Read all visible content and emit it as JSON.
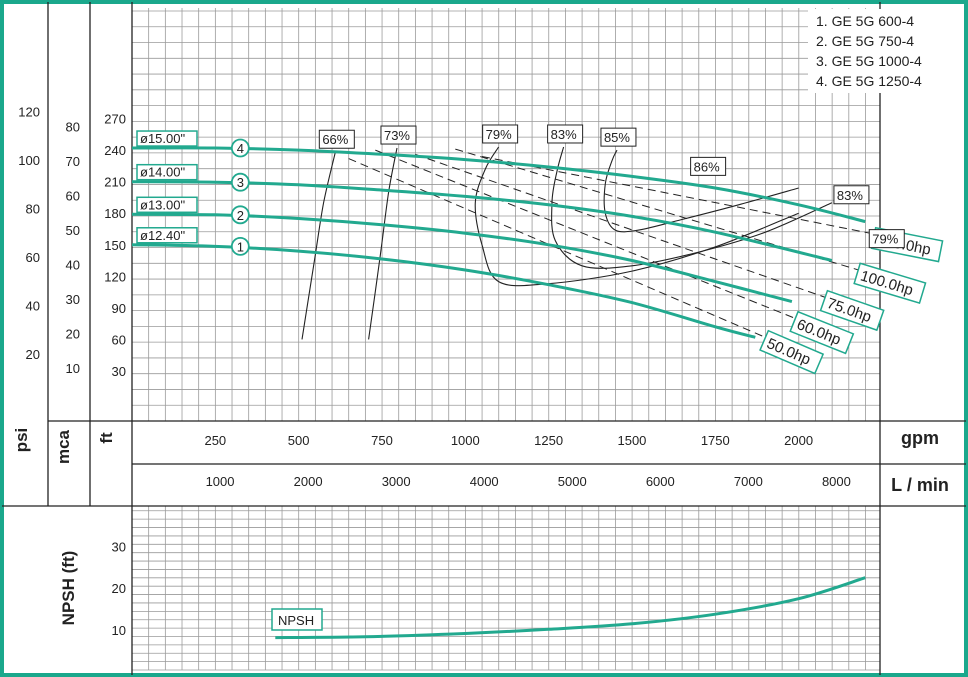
{
  "colors": {
    "frame": "#1aa88c",
    "curve": "#22a98f",
    "ink": "#222222",
    "grid": "#9a9a9a"
  },
  "legend": [
    "1. GE 5G 600-4",
    "2. GE 5G 750-4",
    "3. GE 5G 1000-4",
    "4. GE 5G 1250-4"
  ],
  "chart_data": [
    {
      "type": "line",
      "title": "",
      "x_unit": "gpm",
      "x_unit_alt": "L / min",
      "xlim": [
        0,
        2250
      ],
      "ylim": [
        0,
        290
      ],
      "y_unit": "ft",
      "y_unit_alt": [
        "mca",
        "psi"
      ],
      "ticks": {
        "gpm": [
          250,
          500,
          750,
          1000,
          1250,
          1500,
          1750,
          2000
        ],
        "lmin": [
          1000,
          2000,
          3000,
          4000,
          5000,
          6000,
          7000,
          8000
        ],
        "ft": [
          30,
          60,
          90,
          120,
          150,
          180,
          210,
          240,
          270
        ],
        "mca": [
          10,
          20,
          30,
          40,
          50,
          60,
          70,
          80
        ],
        "psi": [
          20,
          40,
          60,
          80,
          100,
          120
        ]
      },
      "impeller_curves": [
        {
          "id": "1",
          "diameter": "ø12.40\"",
          "x": [
            0,
            250,
            500,
            750,
            1000,
            1250,
            1500,
            1750,
            1870
          ],
          "y": [
            150,
            148.5,
            144,
            136.5,
            126,
            112,
            95,
            72,
            62
          ]
        },
        {
          "id": "2",
          "diameter": "ø13.00\"",
          "x": [
            0,
            250,
            500,
            750,
            1000,
            1250,
            1500,
            1750,
            1980
          ],
          "y": [
            179,
            178.5,
            175,
            169,
            161,
            150,
            135,
            115,
            96
          ]
        },
        {
          "id": "3",
          "diameter": "ø14.00\"",
          "x": [
            0,
            250,
            500,
            750,
            1000,
            1250,
            1500,
            1750,
            2100
          ],
          "y": [
            210,
            209.5,
            207,
            202,
            196,
            188,
            177,
            162,
            135
          ]
        },
        {
          "id": "4",
          "diameter": "ø15.00\"",
          "x": [
            0,
            250,
            500,
            750,
            1000,
            1250,
            1500,
            1750,
            2000,
            2200
          ],
          "y": [
            242,
            242,
            240,
            236,
            231,
            224,
            215,
            204,
            188,
            172
          ]
        }
      ],
      "efficiency_curves": [
        {
          "label": "66%",
          "x": [
            510,
            545,
            575,
            610
          ],
          "y": [
            60,
            130,
            190,
            238
          ]
        },
        {
          "label": "73%",
          "x": [
            710,
            745,
            770,
            795
          ],
          "y": [
            60,
            140,
            200,
            242
          ]
        },
        {
          "label": "79%",
          "x": [
            2000,
            1750,
            1500,
            1250,
            1100,
            1050,
            1030,
            1060,
            1100
          ],
          "y": [
            180,
            148,
            125,
            113,
            115,
            150,
            190,
            222,
            243
          ]
        },
        {
          "label": "83%",
          "x": [
            2100,
            1900,
            1700,
            1500,
            1350,
            1270,
            1260,
            1275,
            1295
          ],
          "y": [
            190,
            162,
            143,
            130,
            130,
            154,
            190,
            220,
            243
          ]
        },
        {
          "label": "85%",
          "x": [
            2000,
            1820,
            1650,
            1520,
            1450,
            1420,
            1420,
            1440,
            1455
          ],
          "y": [
            204,
            188,
            174,
            164,
            164,
            180,
            208,
            230,
            240
          ]
        },
        {
          "label": "86%",
          "x": [
            1700
          ],
          "y": [
            216
          ]
        },
        {
          "label": "83%",
          "x": [
            2130
          ],
          "y": [
            189
          ]
        },
        {
          "label": "79%",
          "x": [
            2200
          ],
          "y": [
            172
          ]
        }
      ],
      "power_lines": [
        {
          "label": "50.0hp",
          "x": [
            650,
            1900
          ],
          "y": [
            232,
            62
          ]
        },
        {
          "label": "60.0hp",
          "x": [
            730,
            1990
          ],
          "y": [
            240,
            80
          ]
        },
        {
          "label": "75.0hp",
          "x": [
            850,
            2080
          ],
          "y": [
            236,
            100
          ]
        },
        {
          "label": "100.0hp",
          "x": [
            970,
            2180
          ],
          "y": [
            241,
            126
          ]
        },
        {
          "label": "125.0hp",
          "x": [
            1050,
            2230
          ],
          "y": [
            234,
            160
          ]
        }
      ],
      "npsh": {
        "label": "NPSH",
        "y_title": "NPSH (ft)",
        "ylim": [
          0,
          35
        ],
        "ticks": [
          10,
          20,
          30
        ],
        "x": [
          430,
          700,
          1000,
          1250,
          1500,
          1750,
          2000,
          2200
        ],
        "y": [
          8.2,
          8.4,
          9.2,
          10.2,
          11.5,
          13.8,
          17.5,
          22.5
        ]
      },
      "grid": true
    }
  ]
}
